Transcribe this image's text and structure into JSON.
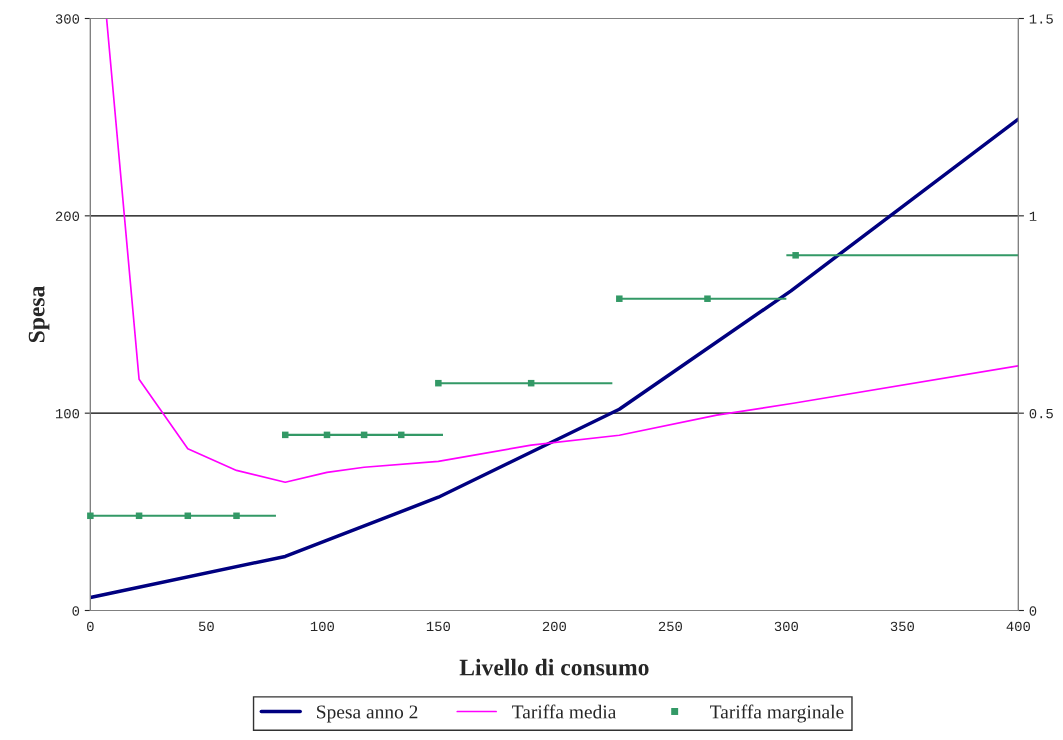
{
  "chart_data": {
    "type": "line",
    "xlabel": "Livello di consumo",
    "ylabel": "Spesa",
    "xlim": [
      0,
      400
    ],
    "xticks": [
      0,
      50,
      100,
      150,
      200,
      250,
      300,
      350,
      400
    ],
    "ylim": [
      0,
      300
    ],
    "yticks": [
      0,
      100,
      200,
      300
    ],
    "y2lim": [
      0,
      1.5
    ],
    "y2ticks": [
      0,
      0.5,
      1,
      1.5
    ],
    "grid": "y",
    "legend": "bottom",
    "marker": "none",
    "line_style": "solid",
    "series": [
      {
        "name": "Spesa anno 2",
        "color": "#000080",
        "x": [
          0,
          84,
          150,
          228,
          302,
          400
        ],
        "values": [
          6.6,
          27.4,
          57.4,
          102,
          162,
          249
        ]
      },
      {
        "name": "Tariffa media",
        "color": "#ff00ff",
        "axis": "y2",
        "x": [
          7,
          21,
          42,
          63,
          84,
          102,
          118,
          150,
          190,
          228,
          270,
          303,
          400
        ],
        "values": [
          1.5,
          0.586,
          0.41,
          0.355,
          0.325,
          0.35,
          0.363,
          0.378,
          0.419,
          0.444,
          0.495,
          0.525,
          0.62
        ]
      },
      {
        "name": "Tariffa marginale",
        "type": "scatter",
        "marker": "square",
        "color": "#339966",
        "axis": "y2",
        "x": [
          0,
          21,
          42,
          63,
          84,
          102,
          118,
          134,
          150,
          190,
          228,
          266,
          304
        ],
        "values": [
          0.24,
          0.24,
          0.24,
          0.24,
          0.445,
          0.445,
          0.445,
          0.445,
          0.576,
          0.576,
          0.79,
          0.79,
          0.9
        ],
        "xerrors": [
          [
            0,
            80
          ],
          null,
          null,
          null,
          [
            84,
            152
          ],
          null,
          null,
          null,
          [
            150,
            225
          ],
          null,
          [
            228,
            300
          ],
          null,
          [
            300,
            400
          ]
        ]
      }
    ]
  }
}
